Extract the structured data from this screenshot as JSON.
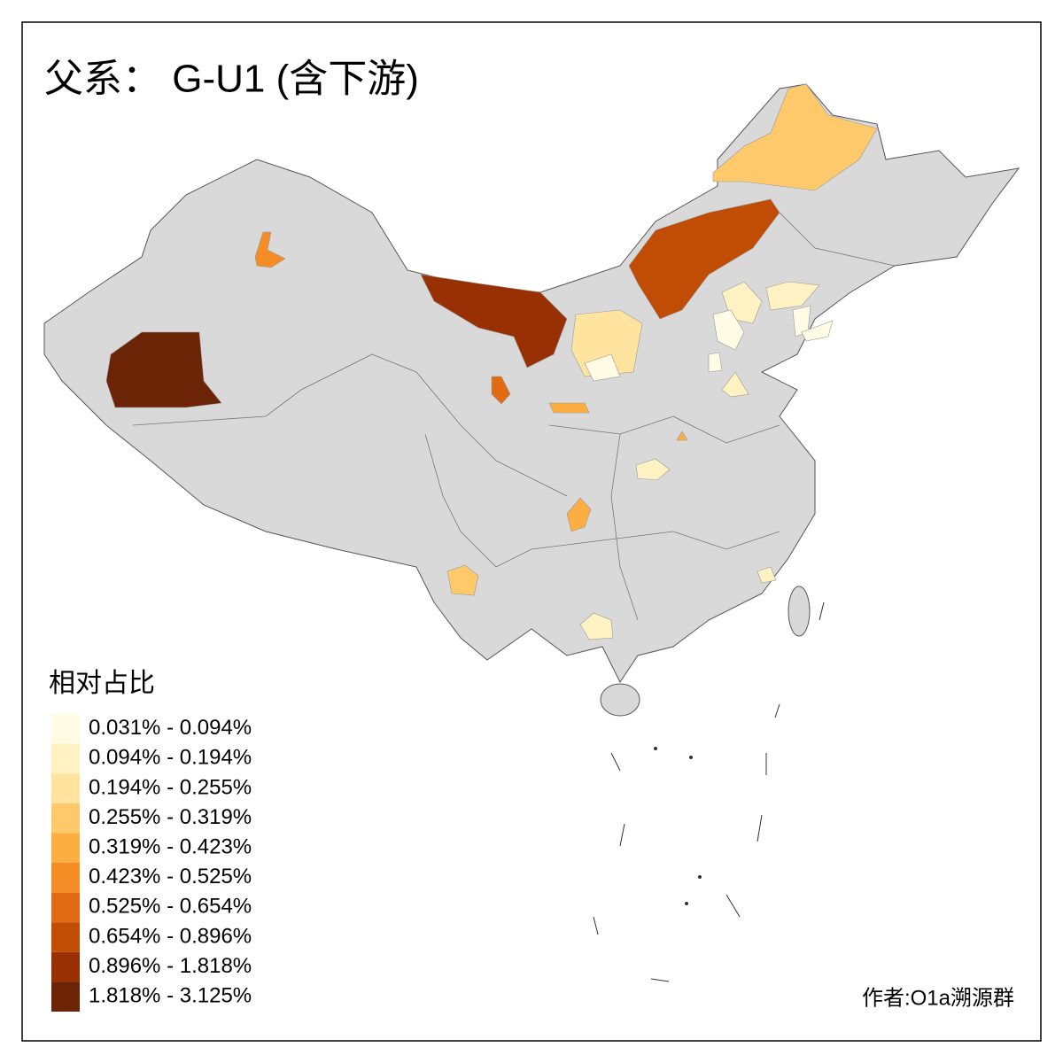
{
  "title": "父系： G-U1 (含下游)",
  "legend": {
    "title": "相对占比",
    "items": [
      {
        "label": "0.031% - 0.094%",
        "color": "#fffbe4"
      },
      {
        "label": "0.094% - 0.194%",
        "color": "#fff2c2"
      },
      {
        "label": "0.194% - 0.255%",
        "color": "#fee49e"
      },
      {
        "label": "0.255% - 0.319%",
        "color": "#fec96a"
      },
      {
        "label": "0.319% - 0.423%",
        "color": "#fdae40"
      },
      {
        "label": "0.423% - 0.525%",
        "color": "#f58d27"
      },
      {
        "label": "0.525% - 0.654%",
        "color": "#e06b12"
      },
      {
        "label": "0.654% - 0.896%",
        "color": "#c14c04"
      },
      {
        "label": "0.896% - 1.818%",
        "color": "#993004"
      },
      {
        "label": "1.818% - 3.125%",
        "color": "#6b2506"
      }
    ]
  },
  "author": "作者:O1a溯源群"
}
